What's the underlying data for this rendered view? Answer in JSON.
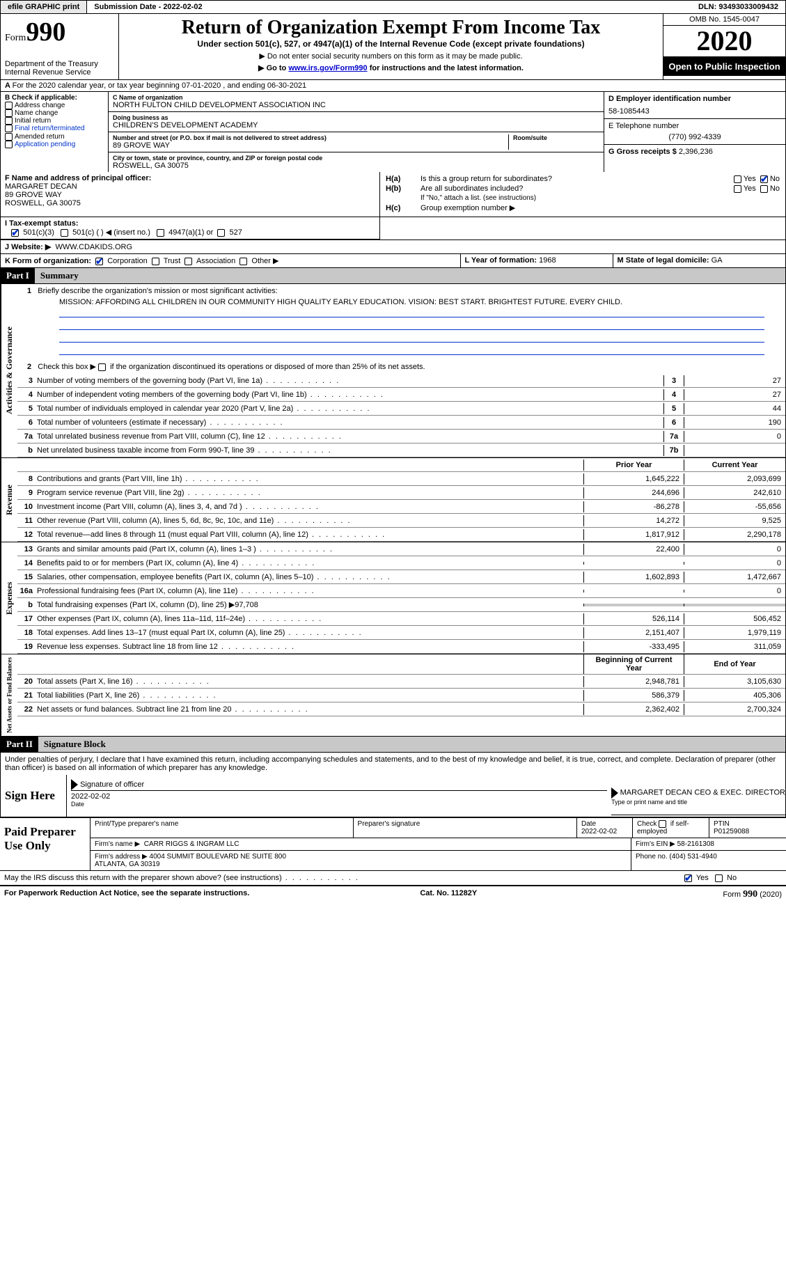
{
  "topbar": {
    "efile": "efile GRAPHIC print",
    "submission": "Submission Date - 2022-02-02",
    "dln": "DLN: 93493033009432"
  },
  "header": {
    "form_word": "Form",
    "form_num": "990",
    "dept": "Department of the Treasury\nInternal Revenue Service",
    "title": "Return of Organization Exempt From Income Tax",
    "sub": "Under section 501(c), 527, or 4947(a)(1) of the Internal Revenue Code (except private foundations)",
    "note1": "▶ Do not enter social security numbers on this form as it may be made public.",
    "note2_pre": "▶ Go to ",
    "note2_link": "www.irs.gov/Form990",
    "note2_post": " for instructions and the latest information.",
    "omb": "OMB No. 1545-0047",
    "year": "2020",
    "inspect": "Open to Public Inspection"
  },
  "section_a": "For the 2020 calendar year, or tax year beginning 07-01-2020     , and ending 06-30-2021",
  "box_b": {
    "label": "B Check if applicable:",
    "items": [
      "Address change",
      "Name change",
      "Initial return",
      "Final return/terminated",
      "Amended return",
      "Application pending"
    ]
  },
  "box_c": {
    "name_label": "C Name of organization",
    "name": "NORTH FULTON CHILD DEVELOPMENT ASSOCIATION INC",
    "dba_label": "Doing business as",
    "dba": "CHILDREN'S DEVELOPMENT ACADEMY",
    "addr_label": "Number and street (or P.O. box if mail is not delivered to street address)",
    "addr": "89 GROVE WAY",
    "room_label": "Room/suite",
    "city_label": "City or town, state or province, country, and ZIP or foreign postal code",
    "city": "ROSWELL, GA  30075"
  },
  "box_d": {
    "label": "D Employer identification number",
    "value": "58-1085443"
  },
  "box_e": {
    "label": "E Telephone number",
    "value": "(770) 992-4339"
  },
  "box_g": {
    "label": "G Gross receipts $",
    "value": "2,396,236"
  },
  "box_f": {
    "label": "F  Name and address of principal officer:",
    "name": "MARGARET DECAN",
    "addr1": "89 GROVE WAY",
    "addr2": "ROSWELL, GA  30075"
  },
  "box_h": {
    "a_label": "H(a)",
    "a_text": "Is this a group return for subordinates?",
    "a_yes": "Yes",
    "a_no": "No",
    "b_label": "H(b)",
    "b_text": "Are all subordinates included?",
    "b_note": "If \"No,\" attach a list. (see instructions)",
    "c_label": "H(c)",
    "c_text": "Group exemption number ▶"
  },
  "box_i": {
    "label": "I     Tax-exempt status:",
    "o1": "501(c)(3)",
    "o2": "501(c) (  ) ◀ (insert no.)",
    "o3": "4947(a)(1) or",
    "o4": "527"
  },
  "box_j": {
    "label": "J     Website: ▶",
    "value": "WWW.CDAKIDS.ORG"
  },
  "box_k": {
    "label": "K Form of organization:",
    "o1": "Corporation",
    "o2": "Trust",
    "o3": "Association",
    "o4": "Other ▶"
  },
  "box_l": {
    "label": "L Year of formation:",
    "value": "1968"
  },
  "box_m": {
    "label": "M State of legal domicile:",
    "value": "GA"
  },
  "part1": {
    "num": "Part I",
    "title": "Summary"
  },
  "mission": {
    "label": "Briefly describe the organization's mission or most significant activities:",
    "text": "MISSION: AFFORDING ALL CHILDREN IN OUR COMMUNITY HIGH QUALITY EARLY EDUCATION. VISION: BEST START. BRIGHTEST FUTURE. EVERY CHILD."
  },
  "line2": "Check this box ▶          if the organization discontinued its operations or disposed of more than 25% of its net assets.",
  "gov_lines": [
    {
      "n": "3",
      "t": "Number of voting members of the governing body (Part VI, line 1a)",
      "box": "3",
      "v": "27"
    },
    {
      "n": "4",
      "t": "Number of independent voting members of the governing body (Part VI, line 1b)",
      "box": "4",
      "v": "27"
    },
    {
      "n": "5",
      "t": "Total number of individuals employed in calendar year 2020 (Part V, line 2a)",
      "box": "5",
      "v": "44"
    },
    {
      "n": "6",
      "t": "Total number of volunteers (estimate if necessary)",
      "box": "6",
      "v": "190"
    },
    {
      "n": "7a",
      "t": "Total unrelated business revenue from Part VIII, column (C), line 12",
      "box": "7a",
      "v": "0"
    },
    {
      "n": "b",
      "t": "Net unrelated business taxable income from Form 990-T, line 39",
      "box": "7b",
      "v": ""
    }
  ],
  "col_hdr": {
    "prior": "Prior Year",
    "curr": "Current Year"
  },
  "revenue_lines": [
    {
      "n": "8",
      "t": "Contributions and grants (Part VIII, line 1h)",
      "p": "1,645,222",
      "c": "2,093,699"
    },
    {
      "n": "9",
      "t": "Program service revenue (Part VIII, line 2g)",
      "p": "244,696",
      "c": "242,610"
    },
    {
      "n": "10",
      "t": "Investment income (Part VIII, column (A), lines 3, 4, and 7d )",
      "p": "-86,278",
      "c": "-55,656"
    },
    {
      "n": "11",
      "t": "Other revenue (Part VIII, column (A), lines 5, 6d, 8c, 9c, 10c, and 11e)",
      "p": "14,272",
      "c": "9,525"
    },
    {
      "n": "12",
      "t": "Total revenue—add lines 8 through 11 (must equal Part VIII, column (A), line 12)",
      "p": "1,817,912",
      "c": "2,290,178"
    }
  ],
  "expense_lines": [
    {
      "n": "13",
      "t": "Grants and similar amounts paid (Part IX, column (A), lines 1–3 )",
      "p": "22,400",
      "c": "0"
    },
    {
      "n": "14",
      "t": "Benefits paid to or for members (Part IX, column (A), line 4)",
      "p": "",
      "c": "0"
    },
    {
      "n": "15",
      "t": "Salaries, other compensation, employee benefits (Part IX, column (A), lines 5–10)",
      "p": "1,602,893",
      "c": "1,472,667"
    },
    {
      "n": "16a",
      "t": "Professional fundraising fees (Part IX, column (A), line 11e)",
      "p": "",
      "c": "0"
    },
    {
      "n": "b",
      "t": "Total fundraising expenses (Part IX, column (D), line 25) ▶97,708",
      "p": "shaded",
      "c": "shaded"
    },
    {
      "n": "17",
      "t": "Other expenses (Part IX, column (A), lines 11a–11d, 11f–24e)",
      "p": "526,114",
      "c": "506,452"
    },
    {
      "n": "18",
      "t": "Total expenses. Add lines 13–17 (must equal Part IX, column (A), line 25)",
      "p": "2,151,407",
      "c": "1,979,119"
    },
    {
      "n": "19",
      "t": "Revenue less expenses. Subtract line 18 from line 12",
      "p": "-333,495",
      "c": "311,059"
    }
  ],
  "na_hdr": {
    "prior": "Beginning of Current Year",
    "curr": "End of Year"
  },
  "na_lines": [
    {
      "n": "20",
      "t": "Total assets (Part X, line 16)",
      "p": "2,948,781",
      "c": "3,105,630"
    },
    {
      "n": "21",
      "t": "Total liabilities (Part X, line 26)",
      "p": "586,379",
      "c": "405,306"
    },
    {
      "n": "22",
      "t": "Net assets or fund balances. Subtract line 21 from line 20",
      "p": "2,362,402",
      "c": "2,700,324"
    }
  ],
  "sides": {
    "gov": "Activities & Governance",
    "rev": "Revenue",
    "exp": "Expenses",
    "na": "Net Assets or Fund Balances"
  },
  "part2": {
    "num": "Part II",
    "title": "Signature Block"
  },
  "perjury": "Under penalties of perjury, I declare that I have examined this return, including accompanying schedules and statements, and to the best of my knowledge and belief, it is true, correct, and complete. Declaration of preparer (other than officer) is based on all information of which preparer has any knowledge.",
  "sign": {
    "here": "Sign Here",
    "sig_label": "Signature of officer",
    "date": "2022-02-02",
    "date_label": "Date",
    "name": "MARGARET DECAN  CEO & EXEC. DIRECTOR",
    "name_label": "Type or print name and title"
  },
  "prep": {
    "title": "Paid Preparer Use Only",
    "h1": "Print/Type preparer's name",
    "h2": "Preparer's signature",
    "h3": "Date",
    "h3v": "2022-02-02",
    "h4": "Check        if self-employed",
    "h5": "PTIN",
    "h5v": "P01259088",
    "firm_label": "Firm's name    ▶",
    "firm": "CARR RIGGS & INGRAM LLC",
    "ein_label": "Firm's EIN ▶",
    "ein": "58-2161308",
    "addr_label": "Firm's address ▶",
    "addr": "4004 SUMMIT BOULEVARD NE SUITE 800\nATLANTA, GA  30319",
    "phone_label": "Phone no.",
    "phone": "(404) 531-4940"
  },
  "discuss": "May the IRS discuss this return with the preparer shown above? (see instructions)",
  "discuss_yes": "Yes",
  "discuss_no": "No",
  "footer": {
    "f1": "For Paperwork Reduction Act Notice, see the separate instructions.",
    "f2": "Cat. No. 11282Y",
    "f3": "Form 990 (2020)"
  },
  "colors": {
    "blue": "#0033cc",
    "shaded": "#c8c8c8",
    "black": "#000000"
  }
}
